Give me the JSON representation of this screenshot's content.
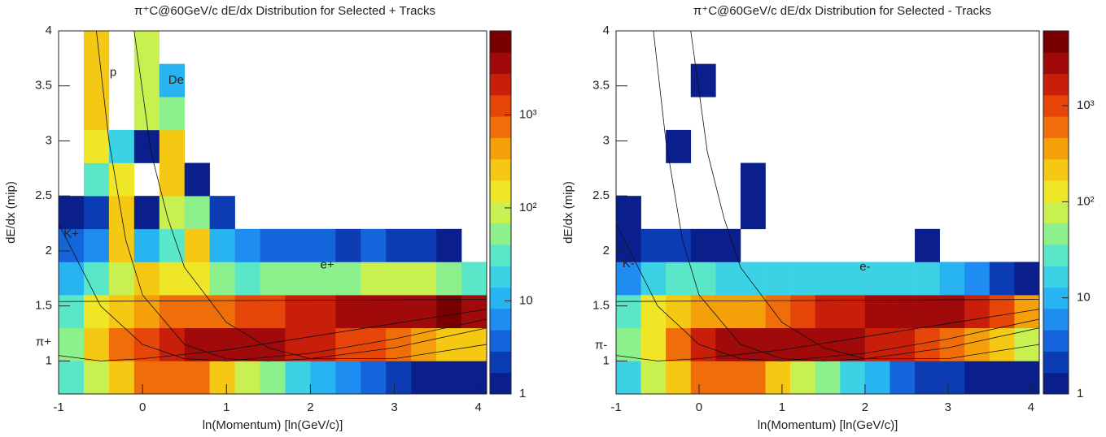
{
  "chart_data": [
    {
      "type": "heatmap",
      "title": "π⁺C@60GeV/c dE/dx Distribution for Selected + Tracks",
      "x_label": "ln(Momentum) [ln(GeV/c)]",
      "y_label": "dE/dx (mip)",
      "xlim": [
        -1,
        4.1
      ],
      "ylim": [
        0.7,
        4
      ],
      "xticks": [
        -1,
        0,
        1,
        2,
        3,
        4
      ],
      "yticks": [
        1,
        1.5,
        2,
        2.5,
        3,
        3.5,
        4
      ],
      "xbins": [
        -1,
        -0.7,
        -0.4,
        -0.1,
        0.2,
        0.5,
        0.8,
        1.1,
        1.4,
        1.7,
        2.0,
        2.3,
        2.6,
        2.9,
        3.2,
        3.5,
        3.8,
        4.1
      ],
      "ybins": [
        0.7,
        1.0,
        1.3,
        1.6,
        1.9,
        2.2,
        2.5,
        2.8,
        3.1,
        3.4,
        3.7,
        4.0
      ],
      "z": [
        [
          30,
          100,
          300,
          600,
          800,
          600,
          300,
          100,
          50,
          20,
          10,
          5,
          3,
          2,
          1,
          1,
          1
        ],
        [
          50,
          200,
          600,
          1500,
          2500,
          3000,
          3000,
          3000,
          3000,
          2500,
          2000,
          1500,
          1000,
          600,
          400,
          300,
          200
        ],
        [
          40,
          150,
          300,
          400,
          800,
          600,
          800,
          1000,
          1500,
          2000,
          2500,
          3000,
          3000,
          3000,
          3000,
          5000,
          3000
        ],
        [
          10,
          30,
          80,
          300,
          150,
          150,
          60,
          40,
          50,
          60,
          60,
          60,
          70,
          80,
          80,
          60,
          30
        ],
        [
          3,
          5,
          200,
          10,
          30,
          200,
          10,
          5,
          3,
          3,
          3,
          2,
          3,
          2,
          2,
          1,
          null
        ],
        [
          1,
          2,
          200,
          1,
          100,
          50,
          2,
          null,
          null,
          null,
          null,
          null,
          null,
          null,
          null,
          null,
          null
        ],
        [
          null,
          30,
          150,
          null,
          200,
          1,
          null,
          null,
          null,
          null,
          null,
          null,
          null,
          null,
          null,
          null,
          null
        ],
        [
          null,
          150,
          20,
          1,
          200,
          null,
          null,
          null,
          null,
          null,
          null,
          null,
          null,
          null,
          null,
          null,
          null
        ],
        [
          null,
          200,
          null,
          100,
          50,
          null,
          null,
          null,
          null,
          null,
          null,
          null,
          null,
          null,
          null,
          null,
          null
        ],
        [
          null,
          200,
          null,
          100,
          10,
          null,
          null,
          null,
          null,
          null,
          null,
          null,
          null,
          null,
          null,
          null,
          null
        ],
        [
          null,
          200,
          null,
          100,
          null,
          null,
          null,
          null,
          null,
          null,
          null,
          null,
          null,
          null,
          null,
          null,
          null
        ]
      ],
      "zlim": [
        1,
        8000
      ],
      "zscale": "log",
      "zticks": [
        1,
        10,
        {
          "value": 100,
          "label": "10²"
        },
        {
          "value": 1000,
          "label": "10³"
        }
      ],
      "palette": [
        "#0a1e8c",
        "#0c3cb4",
        "#1464dc",
        "#1e8cf0",
        "#28b4f0",
        "#3cd2e6",
        "#5ae6c8",
        "#8cf08c",
        "#c8f050",
        "#f0e628",
        "#f5c814",
        "#f5a00a",
        "#f06e0a",
        "#e6460a",
        "#c81e0a",
        "#a00a0a",
        "#780000"
      ],
      "curves": [
        {
          "x": [
            -1,
            4.1
          ],
          "y": [
            1.54,
            1.56
          ]
        },
        {
          "x": [
            -1,
            -0.5,
            0,
            1,
            2,
            3,
            4.1
          ],
          "y": [
            1.05,
            1.0,
            1.02,
            1.1,
            1.22,
            1.34,
            1.47
          ]
        },
        {
          "x": [
            -1,
            -0.5,
            0,
            0.5,
            1,
            2,
            3,
            4.1
          ],
          "y": [
            2.25,
            1.5,
            1.15,
            1.02,
            1.0,
            1.07,
            1.2,
            1.38
          ]
        },
        {
          "x": [
            -0.55,
            -0.4,
            -0.2,
            0,
            0.5,
            1,
            1.5,
            2,
            3,
            4.1
          ],
          "y": [
            4,
            3,
            2.1,
            1.6,
            1.15,
            1.02,
            1.0,
            1.02,
            1.12,
            1.3
          ]
        },
        {
          "x": [
            -0.1,
            0.1,
            0.3,
            0.5,
            1,
            1.5,
            2,
            3,
            4.1
          ],
          "y": [
            4,
            2.9,
            2.3,
            1.85,
            1.35,
            1.12,
            1.02,
            1.02,
            1.15
          ]
        }
      ],
      "annotations": [
        {
          "text": "p",
          "x": -0.35,
          "y": 3.62
        },
        {
          "text": "De",
          "x": 0.4,
          "y": 3.55
        },
        {
          "text": "K+",
          "x": -0.85,
          "y": 2.15
        },
        {
          "text": "e+",
          "x": 2.2,
          "y": 1.87
        },
        {
          "text": "π+",
          "x": -1.18,
          "y": 1.17
        }
      ]
    },
    {
      "type": "heatmap",
      "title": "π⁺C@60GeV/c dE/dx Distribution for Selected - Tracks",
      "x_label": "ln(Momentum) [ln(GeV/c)]",
      "y_label": "dE/dx (mip)",
      "xlim": [
        -1,
        4.1
      ],
      "ylim": [
        0.7,
        4
      ],
      "xticks": [
        -1,
        0,
        1,
        2,
        3,
        4
      ],
      "yticks": [
        1,
        1.5,
        2,
        2.5,
        3,
        3.5,
        4
      ],
      "xbins": [
        -1,
        -0.7,
        -0.4,
        -0.1,
        0.2,
        0.5,
        0.8,
        1.1,
        1.4,
        1.7,
        2.0,
        2.3,
        2.6,
        2.9,
        3.2,
        3.5,
        3.8,
        4.1
      ],
      "ybins": [
        0.7,
        1.0,
        1.3,
        1.6,
        1.9,
        2.2,
        2.5,
        2.8,
        3.1,
        3.4,
        3.7,
        4.0
      ],
      "z": [
        [
          20,
          80,
          250,
          500,
          700,
          500,
          250,
          80,
          40,
          15,
          8,
          4,
          2,
          2,
          1,
          1,
          1
        ],
        [
          40,
          150,
          500,
          1300,
          2200,
          2800,
          3000,
          3000,
          2800,
          2300,
          1800,
          1300,
          900,
          500,
          300,
          200,
          100
        ],
        [
          30,
          120,
          250,
          300,
          300,
          400,
          600,
          900,
          1300,
          1800,
          2200,
          2500,
          2500,
          2200,
          1800,
          1200,
          300
        ],
        [
          5,
          20,
          30,
          25,
          20,
          20,
          20,
          20,
          20,
          20,
          20,
          20,
          15,
          10,
          5,
          2,
          1
        ],
        [
          1,
          2,
          2,
          1,
          1,
          null,
          null,
          null,
          null,
          null,
          null,
          null,
          1,
          null,
          null,
          null,
          null
        ],
        [
          1,
          null,
          null,
          null,
          null,
          1,
          null,
          null,
          null,
          null,
          null,
          null,
          null,
          null,
          null,
          null,
          null
        ],
        [
          null,
          null,
          null,
          null,
          null,
          1,
          null,
          null,
          null,
          null,
          null,
          null,
          null,
          null,
          null,
          null,
          null
        ],
        [
          null,
          null,
          1,
          null,
          null,
          null,
          null,
          null,
          null,
          null,
          null,
          null,
          null,
          null,
          null,
          null,
          null
        ],
        [
          null,
          null,
          null,
          null,
          null,
          null,
          null,
          null,
          null,
          null,
          null,
          null,
          null,
          null,
          null,
          null,
          null
        ],
        [
          null,
          null,
          null,
          1,
          null,
          null,
          null,
          null,
          null,
          null,
          null,
          null,
          null,
          null,
          null,
          null,
          null
        ],
        [
          null,
          null,
          null,
          null,
          null,
          null,
          null,
          null,
          null,
          null,
          null,
          null,
          null,
          null,
          null,
          null,
          null
        ]
      ],
      "zlim": [
        1,
        6000
      ],
      "zscale": "log",
      "zticks": [
        1,
        10,
        {
          "value": 100,
          "label": "10²"
        },
        {
          "value": 1000,
          "label": "10³"
        }
      ],
      "palette": [
        "#0a1e8c",
        "#0c3cb4",
        "#1464dc",
        "#1e8cf0",
        "#28b4f0",
        "#3cd2e6",
        "#5ae6c8",
        "#8cf08c",
        "#c8f050",
        "#f0e628",
        "#f5c814",
        "#f5a00a",
        "#f06e0a",
        "#e6460a",
        "#c81e0a",
        "#a00a0a",
        "#780000"
      ],
      "curves": [
        {
          "x": [
            -1,
            4.1
          ],
          "y": [
            1.54,
            1.56
          ]
        },
        {
          "x": [
            -1,
            -0.5,
            0,
            1,
            2,
            3,
            4.1
          ],
          "y": [
            1.05,
            1.0,
            1.02,
            1.1,
            1.22,
            1.34,
            1.47
          ]
        },
        {
          "x": [
            -1,
            -0.5,
            0,
            0.5,
            1,
            2,
            3,
            4.1
          ],
          "y": [
            2.25,
            1.5,
            1.15,
            1.02,
            1.0,
            1.07,
            1.2,
            1.38
          ]
        },
        {
          "x": [
            -0.55,
            -0.4,
            -0.2,
            0,
            0.5,
            1,
            1.5,
            2,
            3,
            4.1
          ],
          "y": [
            4,
            3,
            2.1,
            1.6,
            1.15,
            1.02,
            1.0,
            1.02,
            1.12,
            1.3
          ]
        },
        {
          "x": [
            -0.1,
            0.1,
            0.3,
            0.5,
            1,
            1.5,
            2,
            3,
            4.1
          ],
          "y": [
            4,
            2.9,
            2.3,
            1.85,
            1.35,
            1.12,
            1.02,
            1.02,
            1.15
          ]
        }
      ],
      "annotations": [
        {
          "text": "K-",
          "x": -0.85,
          "y": 1.88
        },
        {
          "text": "e-",
          "x": 2.0,
          "y": 1.85
        },
        {
          "text": "π-",
          "x": -1.18,
          "y": 1.14
        }
      ]
    }
  ]
}
